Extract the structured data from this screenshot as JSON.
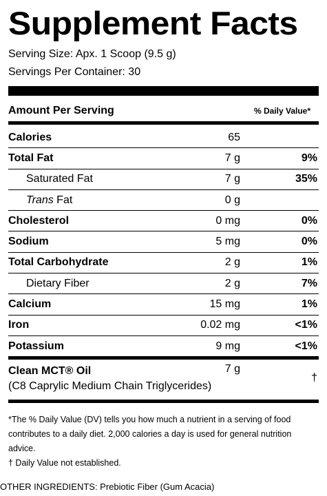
{
  "title": "Supplement Facts",
  "serving_size": "Serving Size: Apx. 1 Scoop (9.5 g)",
  "servings_per_container": "Servings Per Container: 30",
  "amount_per_serving": "Amount Per Serving",
  "daily_value_header": "% Daily Value*",
  "rows": [
    {
      "name": "Calories",
      "amount": "65",
      "dv": ""
    },
    {
      "name": "Total Fat",
      "amount": "7 g",
      "dv": "9%"
    },
    {
      "name": "Saturated Fat",
      "amount": "7 g",
      "dv": "35%"
    },
    {
      "name_italic": "Trans",
      "name_rest": " Fat",
      "amount": "0 g",
      "dv": ""
    },
    {
      "name": "Cholesterol",
      "amount": "0 mg",
      "dv": "0%"
    },
    {
      "name": "Sodium",
      "amount": "5 mg",
      "dv": "0%"
    },
    {
      "name": "Total Carbohydrate",
      "amount": "2 g",
      "dv": "1%"
    },
    {
      "name": "Dietary Fiber",
      "amount": "2 g",
      "dv": "7%"
    },
    {
      "name": "Calcium",
      "amount": "15 mg",
      "dv": "1%"
    },
    {
      "name": "Iron",
      "amount": "0.02 mg",
      "dv": "<1%"
    },
    {
      "name": "Potassium",
      "amount": "9 mg",
      "dv": "<1%"
    }
  ],
  "mct": {
    "name": "Clean MCT® Oil",
    "amount": "7 g",
    "description": "(C8 Caprylic Medium Chain Triglycerides)",
    "dv": "†"
  },
  "footnote_dv": "*The % Daily Value (DV) tells you how much a nutrient in a serving of food contributes to a daily diet. 2,000 calories a day is used for general nutrition advice.",
  "footnote_dagger": "† Daily Value not established.",
  "other_ingredients": "OTHER INGREDIENTS: Prebiotic Fiber (Gum Acacia)"
}
